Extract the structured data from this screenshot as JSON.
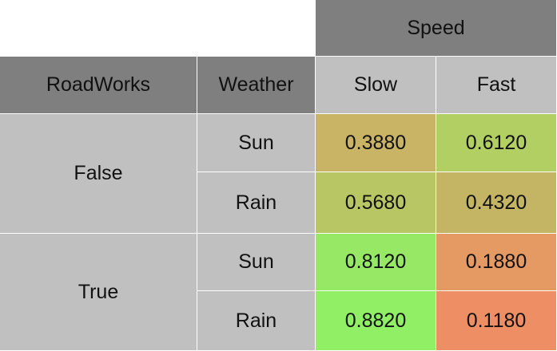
{
  "table": {
    "column_group_header": "Speed",
    "columns": [
      "RoadWorks",
      "Weather"
    ],
    "value_columns": [
      "Slow",
      "Fast"
    ],
    "rows": [
      {
        "roadworks": "False",
        "weather": "Sun",
        "slow": "0.3880",
        "fast": "0.6120",
        "slow_color": "#c9b364",
        "fast_color": "#b2cf64"
      },
      {
        "roadworks": "False",
        "weather": "Rain",
        "slow": "0.5680",
        "fast": "0.4320",
        "slow_color": "#b8c764",
        "fast_color": "#c4b564"
      },
      {
        "roadworks": "True",
        "weather": "Sun",
        "slow": "0.8120",
        "fast": "0.1880",
        "slow_color": "#97e865",
        "fast_color": "#e59a64"
      },
      {
        "roadworks": "True",
        "weather": "Rain",
        "slow": "0.8820",
        "fast": "0.1180",
        "slow_color": "#90ef65",
        "fast_color": "#ed8e64"
      }
    ]
  },
  "colors": {
    "header_dark": "#7f7f7f",
    "header_light": "#c0c0c0",
    "background": "#ffffff"
  }
}
